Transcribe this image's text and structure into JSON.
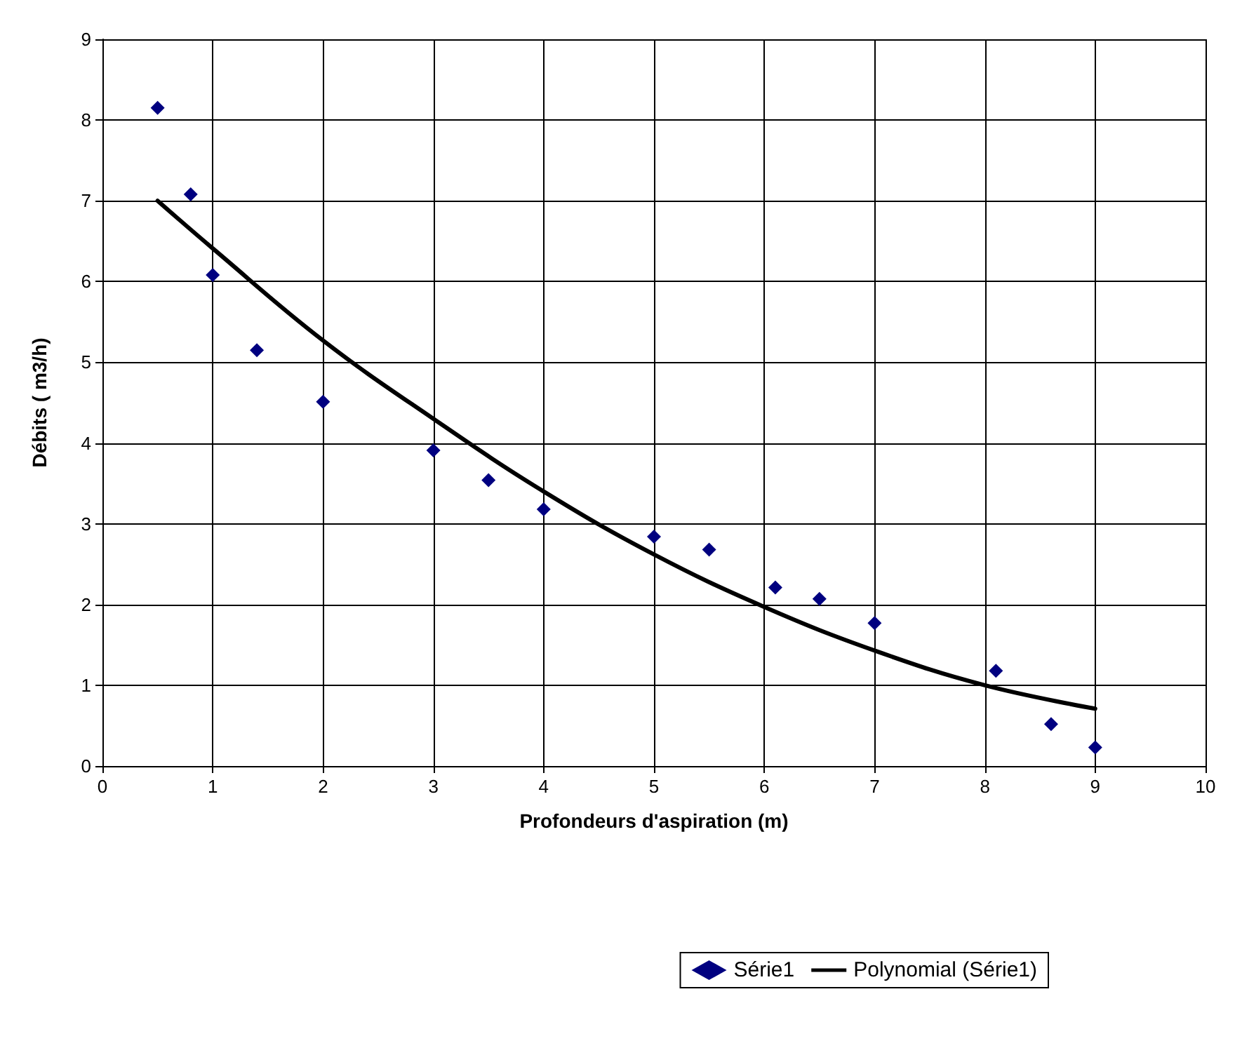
{
  "chart_data": {
    "type": "scatter",
    "xlabel": "Profondeurs d'aspiration (m)",
    "ylabel": "Débits ( m3/h)",
    "xlim": [
      0,
      10
    ],
    "xticks": [
      0,
      1,
      2,
      3,
      4,
      5,
      6,
      7,
      8,
      9,
      10
    ],
    "ylim": [
      0,
      9
    ],
    "yticks": [
      0,
      1,
      2,
      3,
      4,
      5,
      6,
      7,
      8,
      9
    ],
    "grid": true,
    "legend": "bottom right",
    "marker": "diamond",
    "series": [
      {
        "name": "Série1",
        "color": "#000080",
        "x": [
          0.5,
          0.8,
          1,
          1.4,
          2,
          3,
          3.5,
          4,
          5,
          5.5,
          6.1,
          6.5,
          7,
          8.1,
          8.6,
          9
        ],
        "values": [
          8.15,
          7.08,
          6.08,
          5.15,
          4.51,
          3.91,
          3.54,
          3.18,
          2.84,
          2.68,
          2.21,
          2.07,
          1.77,
          1.18,
          0.52,
          0.23
        ]
      },
      {
        "name": "Polynomial (Série1)",
        "type": "line",
        "color": "#000000",
        "marker": "none",
        "line_style": "solid",
        "x": [
          0.5,
          1,
          2,
          3,
          4,
          5,
          6,
          7,
          8,
          9
        ],
        "values": [
          7.0,
          6.41,
          5.27,
          4.3,
          3.4,
          2.62,
          1.97,
          1.43,
          1.0,
          0.71
        ]
      }
    ]
  }
}
